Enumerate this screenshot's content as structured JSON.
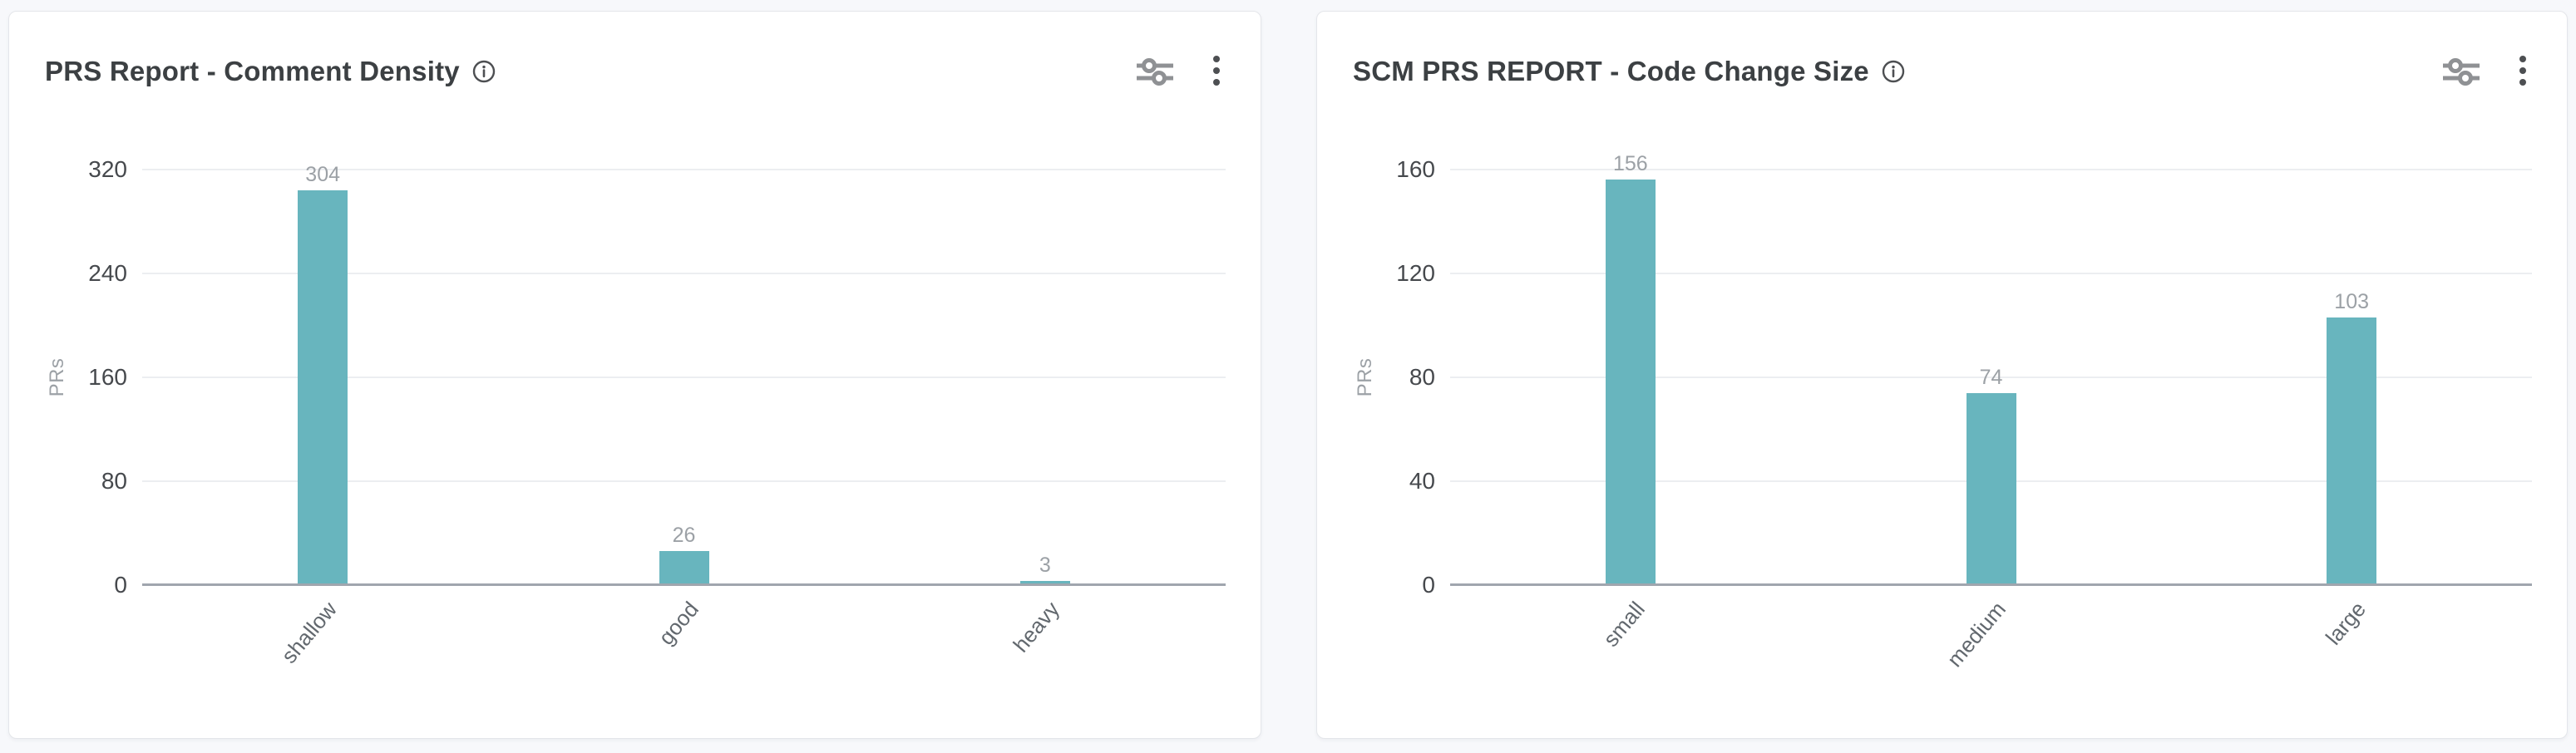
{
  "cards": [
    {
      "title": "PRS Report - Comment Density"
    },
    {
      "title": "SCM PRS REPORT - Code Change Size"
    }
  ],
  "toolbar": {
    "icons": [
      "filter-sliders",
      "kebab-menu"
    ],
    "title_icon": "info-circle"
  },
  "chart_data": [
    {
      "type": "bar",
      "title": "PRS Report - Comment Density",
      "categories": [
        "shallow",
        "good",
        "heavy"
      ],
      "values": [
        304,
        26,
        3
      ],
      "xlabel": "",
      "ylabel": "PRs",
      "yticks": [
        0,
        80,
        160,
        240,
        320
      ],
      "ylim": [
        0,
        320
      ],
      "grid": true,
      "legend": false,
      "value_labels": true
    },
    {
      "type": "bar",
      "title": "SCM PRS REPORT - Code Change Size",
      "categories": [
        "small",
        "medium",
        "large"
      ],
      "values": [
        156,
        74,
        103
      ],
      "xlabel": "",
      "ylabel": "PRs",
      "yticks": [
        0,
        40,
        80,
        120,
        160
      ],
      "ylim": [
        0,
        160
      ],
      "grid": true,
      "legend": false,
      "value_labels": true
    }
  ],
  "colors": {
    "bar": "#68b5be",
    "grid": "#eceef1",
    "axis": "#a0a6ae",
    "tick": "#46494d",
    "category": "#62686e",
    "muted": "#9ca1a6",
    "title": "#3c4043",
    "icon": "#8f9194",
    "kebab": "#4d4f52",
    "card_bg": "#ffffff",
    "card_border": "#e4e6ea",
    "page_bg": "#f7f8fb"
  }
}
